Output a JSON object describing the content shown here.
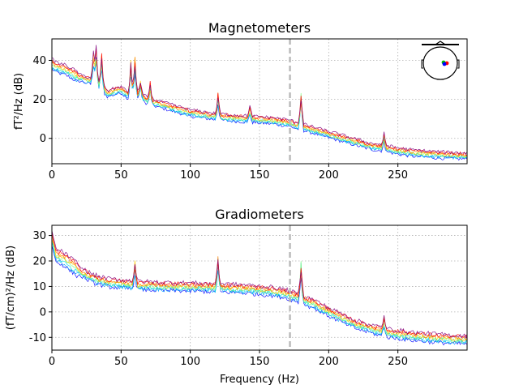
{
  "chart_data": [
    {
      "type": "line",
      "title": "Magnetometers",
      "xlabel": "",
      "ylabel": "fT²/Hz (dB)",
      "xlim": [
        0,
        300
      ],
      "ylim": [
        -13,
        51
      ],
      "xticks": [
        0,
        50,
        100,
        150,
        200,
        250
      ],
      "yticks": [
        0,
        20,
        40
      ],
      "grid": true,
      "marker_line_x": 172,
      "inset": "sensor-layout-head",
      "inset_position": "top-right",
      "envelope": {
        "x": [
          0,
          5,
          10,
          15,
          20,
          25,
          30,
          35,
          40,
          45,
          50,
          55,
          60,
          65,
          70,
          80,
          90,
          100,
          120,
          140,
          160,
          170,
          180,
          190,
          200,
          210,
          220,
          230,
          240,
          250,
          260,
          270,
          280,
          290,
          298
        ],
        "center": [
          38,
          36,
          35,
          33,
          31,
          30,
          29,
          27,
          23,
          24,
          25,
          22,
          23,
          21,
          19,
          17,
          15,
          13,
          11,
          10,
          9,
          8,
          6,
          4,
          2,
          0,
          -2,
          -4,
          -5,
          -6.5,
          -7.5,
          -8,
          -8.5,
          -8.8,
          -9
        ],
        "spread": 1.6
      },
      "peaks": [
        {
          "x": 30,
          "y": 45
        },
        {
          "x": 32,
          "y": 47
        },
        {
          "x": 36,
          "y": 44
        },
        {
          "x": 57,
          "y": 41
        },
        {
          "x": 60,
          "y": 42
        },
        {
          "x": 64,
          "y": 30
        },
        {
          "x": 71,
          "y": 28
        },
        {
          "x": 120,
          "y": 23
        },
        {
          "x": 143,
          "y": 16
        },
        {
          "x": 180,
          "y": 26
        },
        {
          "x": 240,
          "y": 2
        }
      ],
      "colors": [
        "#0000ff",
        "#00a0ff",
        "#00e0e0",
        "#80ff80",
        "#ffcc00",
        "#ff8000",
        "#ff0000",
        "#800080"
      ]
    },
    {
      "type": "line",
      "title": "Gradiometers",
      "xlabel": "Frequency (Hz)",
      "ylabel": "(fT/cm)²/Hz (dB)",
      "xlim": [
        0,
        300
      ],
      "ylim": [
        -15,
        34
      ],
      "xticks": [
        0,
        50,
        100,
        150,
        200,
        250
      ],
      "yticks": [
        -10,
        0,
        10,
        20,
        30
      ],
      "grid": true,
      "marker_line_x": 172,
      "envelope": {
        "x": [
          0,
          3,
          8,
          15,
          20,
          30,
          40,
          50,
          60,
          80,
          100,
          120,
          140,
          160,
          170,
          180,
          190,
          200,
          210,
          220,
          230,
          240,
          250,
          260,
          270,
          280,
          290,
          298
        ],
        "center": [
          29,
          22,
          21,
          18,
          16,
          13,
          11.5,
          11,
          10.5,
          10,
          9.8,
          9.5,
          9,
          8,
          7,
          5,
          3,
          0,
          -2.5,
          -5,
          -6.5,
          -8,
          -8.8,
          -9.5,
          -10,
          -10.4,
          -10.8,
          -11
        ],
        "spread": 1.6
      },
      "peaks": [
        {
          "x": 60,
          "y": 20
        },
        {
          "x": 120,
          "y": 22
        },
        {
          "x": 180,
          "y": 22
        },
        {
          "x": 240,
          "y": -2
        }
      ],
      "colors": [
        "#0000ff",
        "#00a0ff",
        "#00e0e0",
        "#80ff80",
        "#ffcc00",
        "#ff8000",
        "#ff0000",
        "#800080"
      ]
    }
  ]
}
